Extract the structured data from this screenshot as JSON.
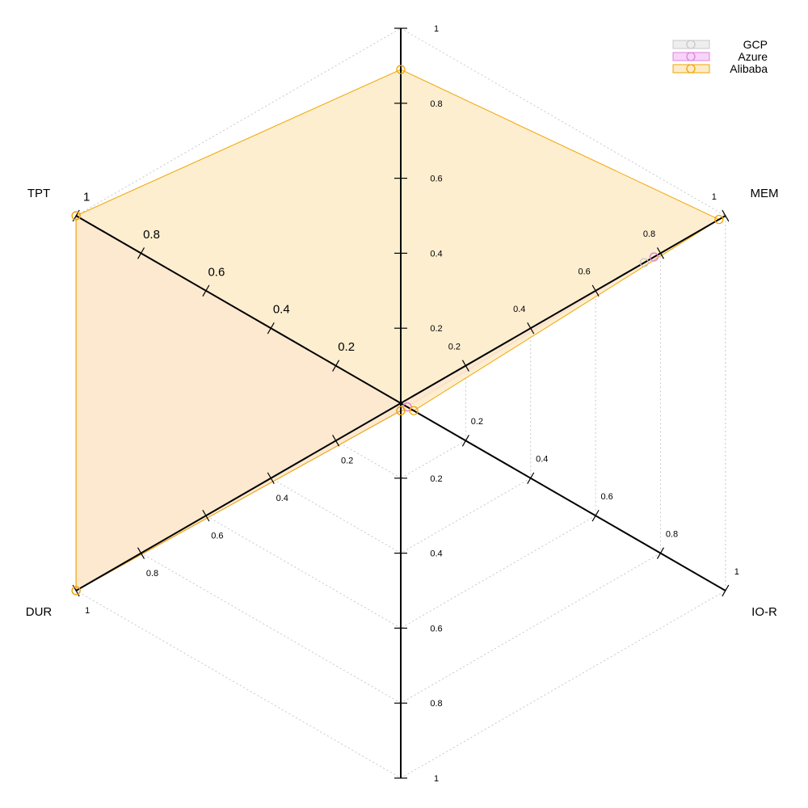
{
  "chart_data": {
    "type": "radar",
    "axes": [
      "",
      "MEM",
      "IO-R",
      "",
      "DUR",
      "TPT"
    ],
    "range": [
      0,
      1
    ],
    "tick_values": [
      0.2,
      0.4,
      0.6,
      0.8,
      1
    ],
    "tick_labels": [
      "0.2",
      "0.4",
      "0.6",
      "0.8",
      "1"
    ],
    "grid": true,
    "legend_position": "top-right",
    "series": [
      {
        "name": "GCP",
        "color": "#c8c8c8",
        "fill": "#eeeeee",
        "values": [
          0.0,
          0.75,
          0.02,
          0.02,
          1.0,
          1.0
        ]
      },
      {
        "name": "Azure",
        "color": "#e080e0",
        "fill": "#f6d6f6",
        "values": [
          0.0,
          0.78,
          0.02,
          0.02,
          1.0,
          1.0
        ]
      },
      {
        "name": "Alibaba",
        "color": "#f0a500",
        "fill": "#fdebc8",
        "values": [
          0.89,
          0.98,
          0.04,
          0.02,
          1.0,
          1.0
        ]
      }
    ]
  }
}
